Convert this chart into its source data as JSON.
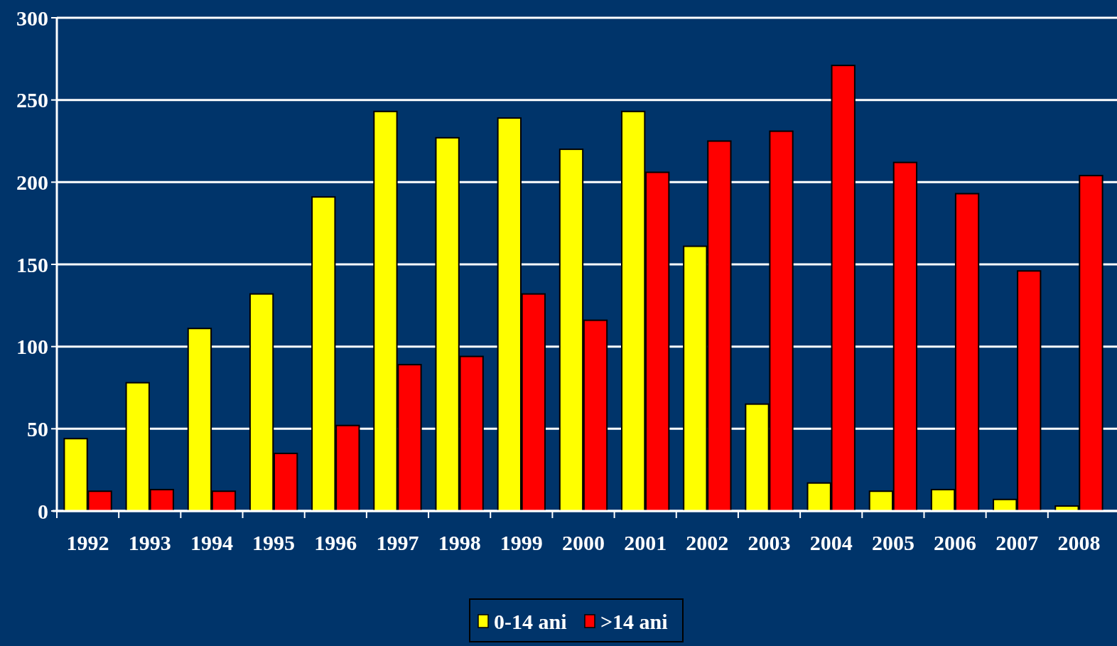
{
  "chart_data": {
    "type": "bar",
    "categories": [
      "1992",
      "1993",
      "1994",
      "1995",
      "1996",
      "1997",
      "1998",
      "1999",
      "2000",
      "2001",
      "2002",
      "2003",
      "2004",
      "2005",
      "2006",
      "2007",
      "2008"
    ],
    "series": [
      {
        "name": "0-14 ani",
        "color": "#ffff00",
        "values": [
          44,
          78,
          111,
          132,
          191,
          243,
          227,
          239,
          220,
          243,
          161,
          65,
          17,
          12,
          13,
          7,
          3
        ]
      },
      {
        "name": ">14 ani",
        "color": "#ff0000",
        "values": [
          12,
          13,
          12,
          35,
          52,
          89,
          94,
          132,
          116,
          206,
          225,
          231,
          271,
          212,
          193,
          146,
          204
        ]
      }
    ],
    "ylim": [
      0,
      300
    ],
    "yticks": [
      0,
      50,
      100,
      150,
      200,
      250,
      300
    ],
    "grid": "y",
    "legend": "bottom"
  }
}
